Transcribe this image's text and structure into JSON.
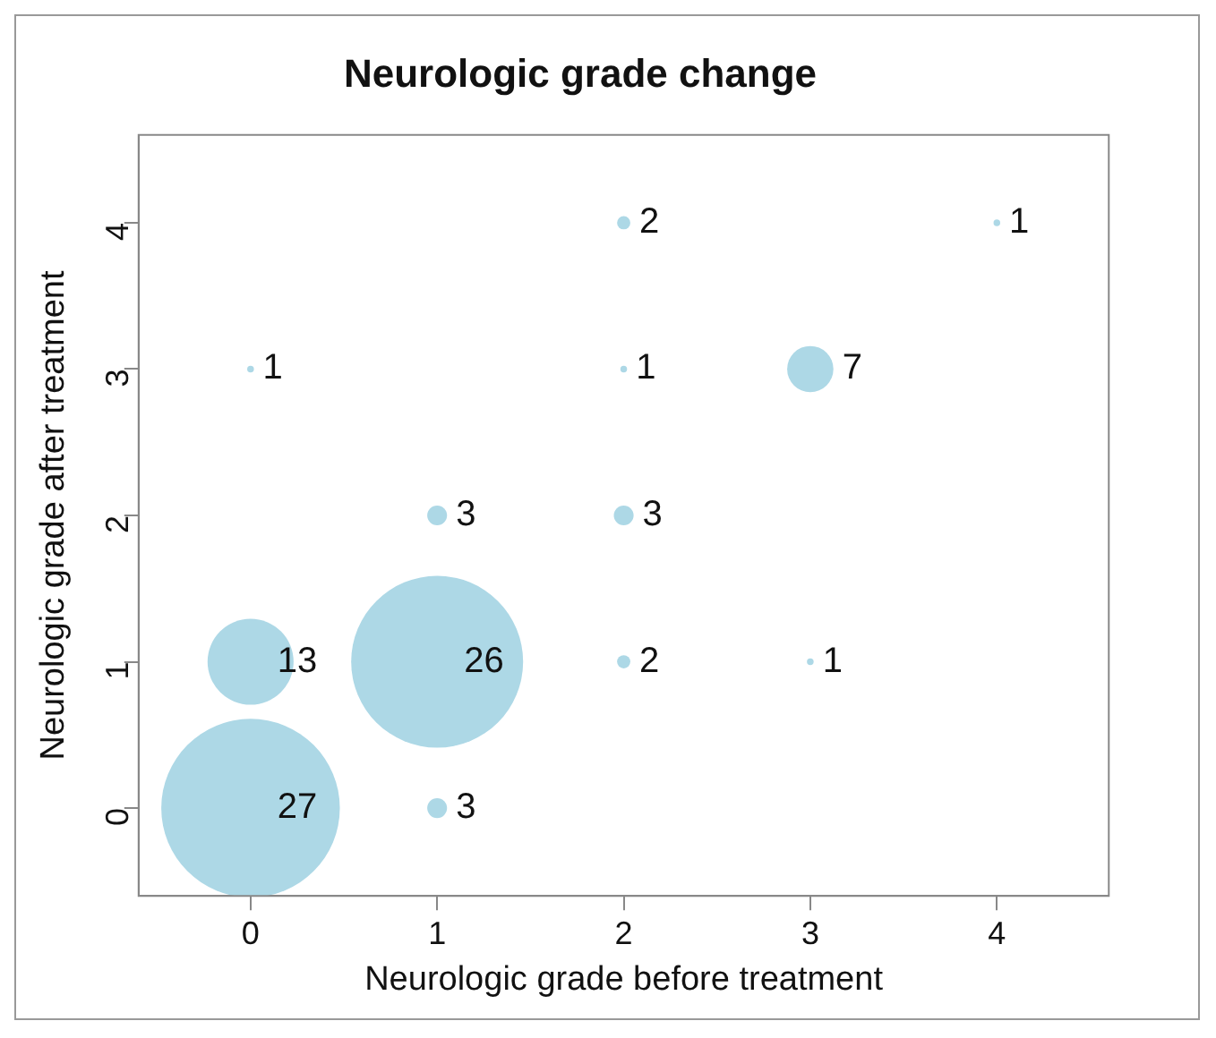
{
  "chart_data": {
    "type": "bubble",
    "title": "Neurologic grade change",
    "xlabel": "Neurologic grade before treatment",
    "ylabel": "Neurologic grade after treatment",
    "xlim": [
      -0.6,
      4.6
    ],
    "ylim": [
      -0.6,
      4.6
    ],
    "xticks": [
      0,
      1,
      2,
      3,
      4
    ],
    "yticks": [
      0,
      1,
      2,
      3,
      4
    ],
    "grid": false,
    "legend": false,
    "series": [
      {
        "color": "#add8e6",
        "x": [
          0,
          1,
          0,
          1,
          2,
          3,
          1,
          2,
          0,
          2,
          3,
          2,
          4
        ],
        "values": [
          0,
          0,
          1,
          1,
          1,
          1,
          2,
          2,
          3,
          3,
          3,
          4,
          4
        ],
        "sizes": [
          1,
          0.0123,
          0.232,
          0.927,
          0.0055,
          0.0014,
          0.0123,
          0.0123,
          0.0014,
          0.0014,
          0.067,
          0.0055,
          0.0014
        ]
      }
    ],
    "annotations": [
      {
        "text": "27",
        "x": 0,
        "y": 0
      },
      {
        "text": "3",
        "x": 1,
        "y": 0
      },
      {
        "text": "13",
        "x": 0,
        "y": 1
      },
      {
        "text": "26",
        "x": 1,
        "y": 1
      },
      {
        "text": "2",
        "x": 2,
        "y": 1
      },
      {
        "text": "1",
        "x": 3,
        "y": 1
      },
      {
        "text": "3",
        "x": 1,
        "y": 2
      },
      {
        "text": "3",
        "x": 2,
        "y": 2
      },
      {
        "text": "1",
        "x": 0,
        "y": 3
      },
      {
        "text": "1",
        "x": 2,
        "y": 3
      },
      {
        "text": "7",
        "x": 3,
        "y": 3
      },
      {
        "text": "2",
        "x": 2,
        "y": 4
      },
      {
        "text": "1",
        "x": 4,
        "y": 4
      }
    ]
  }
}
